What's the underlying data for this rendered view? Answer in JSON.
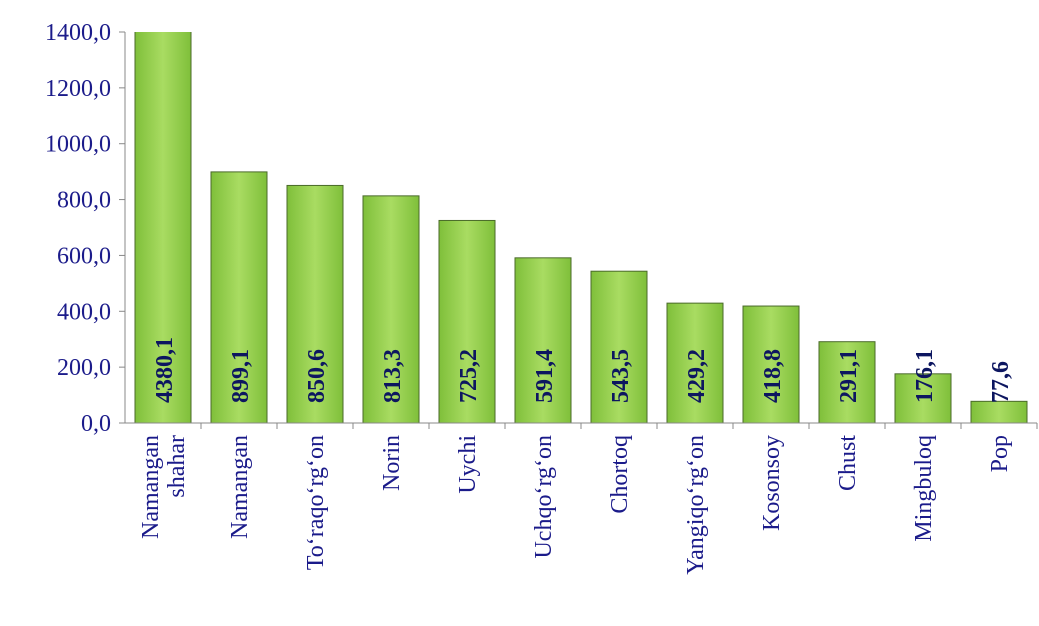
{
  "chart_data": {
    "type": "bar",
    "categories": [
      "Namangan shahar",
      "Namangan",
      "To‘raqo‘rg‘on",
      "Norin",
      "Uychi",
      "Uchqo‘rg‘on",
      "Chortoq",
      "Yangiqo‘rg‘on",
      "Kosonsoy",
      "Chust",
      "Mingbuloq",
      "Pop"
    ],
    "values": [
      4380.1,
      899.1,
      850.6,
      813.3,
      725.2,
      591.4,
      543.5,
      429.2,
      418.8,
      291.1,
      176.1,
      77.6
    ],
    "value_labels": [
      "4380,1",
      "899,1",
      "850,6",
      "813,3",
      "725,2",
      "591,4",
      "543,5",
      "429,2",
      "418,8",
      "291,1",
      "176,1",
      "77,6"
    ],
    "color": "#92d050",
    "ylim": [
      0,
      1400
    ],
    "yticks": [
      {
        "value": 0,
        "label": "0,0"
      },
      {
        "value": 200,
        "label": "200,0"
      },
      {
        "value": 400,
        "label": "400,0"
      },
      {
        "value": 600,
        "label": "600,0"
      },
      {
        "value": 800,
        "label": "800,0"
      },
      {
        "value": 1000,
        "label": "1000,0"
      },
      {
        "value": 1200,
        "label": "1200,0"
      },
      {
        "value": 1400,
        "label": "1400,0"
      }
    ]
  }
}
